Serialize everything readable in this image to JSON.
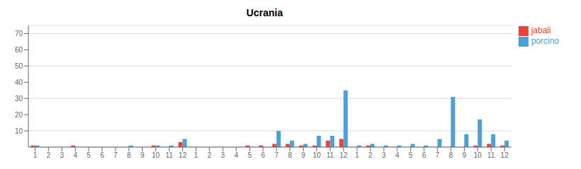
{
  "chart_data": {
    "type": "bar",
    "title": "Ucrania",
    "categories": [
      "1",
      "2",
      "3",
      "4",
      "5",
      "6",
      "7",
      "8",
      "9",
      "10",
      "11",
      "12",
      "1",
      "2",
      "3",
      "4",
      "5",
      "6",
      "7",
      "8",
      "9",
      "10",
      "11",
      "12",
      "1",
      "2",
      "3",
      "4",
      "5",
      "6",
      "7",
      "8",
      "9",
      "10",
      "11",
      "12"
    ],
    "series": [
      {
        "name": "jabali",
        "color": "#e8433a",
        "values": [
          1,
          0,
          0,
          1,
          0,
          0,
          0,
          0,
          0,
          1,
          0,
          3,
          0,
          0,
          0,
          0,
          1,
          1,
          2,
          2,
          1,
          1,
          4,
          5,
          0,
          1,
          0,
          0,
          0,
          0,
          0,
          0,
          0,
          1,
          2,
          1
        ]
      },
      {
        "name": "porcino",
        "color": "#4e9fd4",
        "values": [
          1,
          0,
          0,
          0,
          0,
          0,
          0,
          1,
          0,
          1,
          1,
          5,
          0,
          0,
          0,
          0,
          0,
          0,
          10,
          4,
          2,
          7,
          7,
          35,
          1,
          2,
          1,
          1,
          2,
          1,
          5,
          31,
          8,
          17,
          8,
          4
        ]
      }
    ],
    "ylim": [
      0,
      75
    ],
    "yticks": [
      10,
      20,
      30,
      40,
      50,
      60,
      70
    ],
    "grid": true,
    "legend": "right"
  }
}
